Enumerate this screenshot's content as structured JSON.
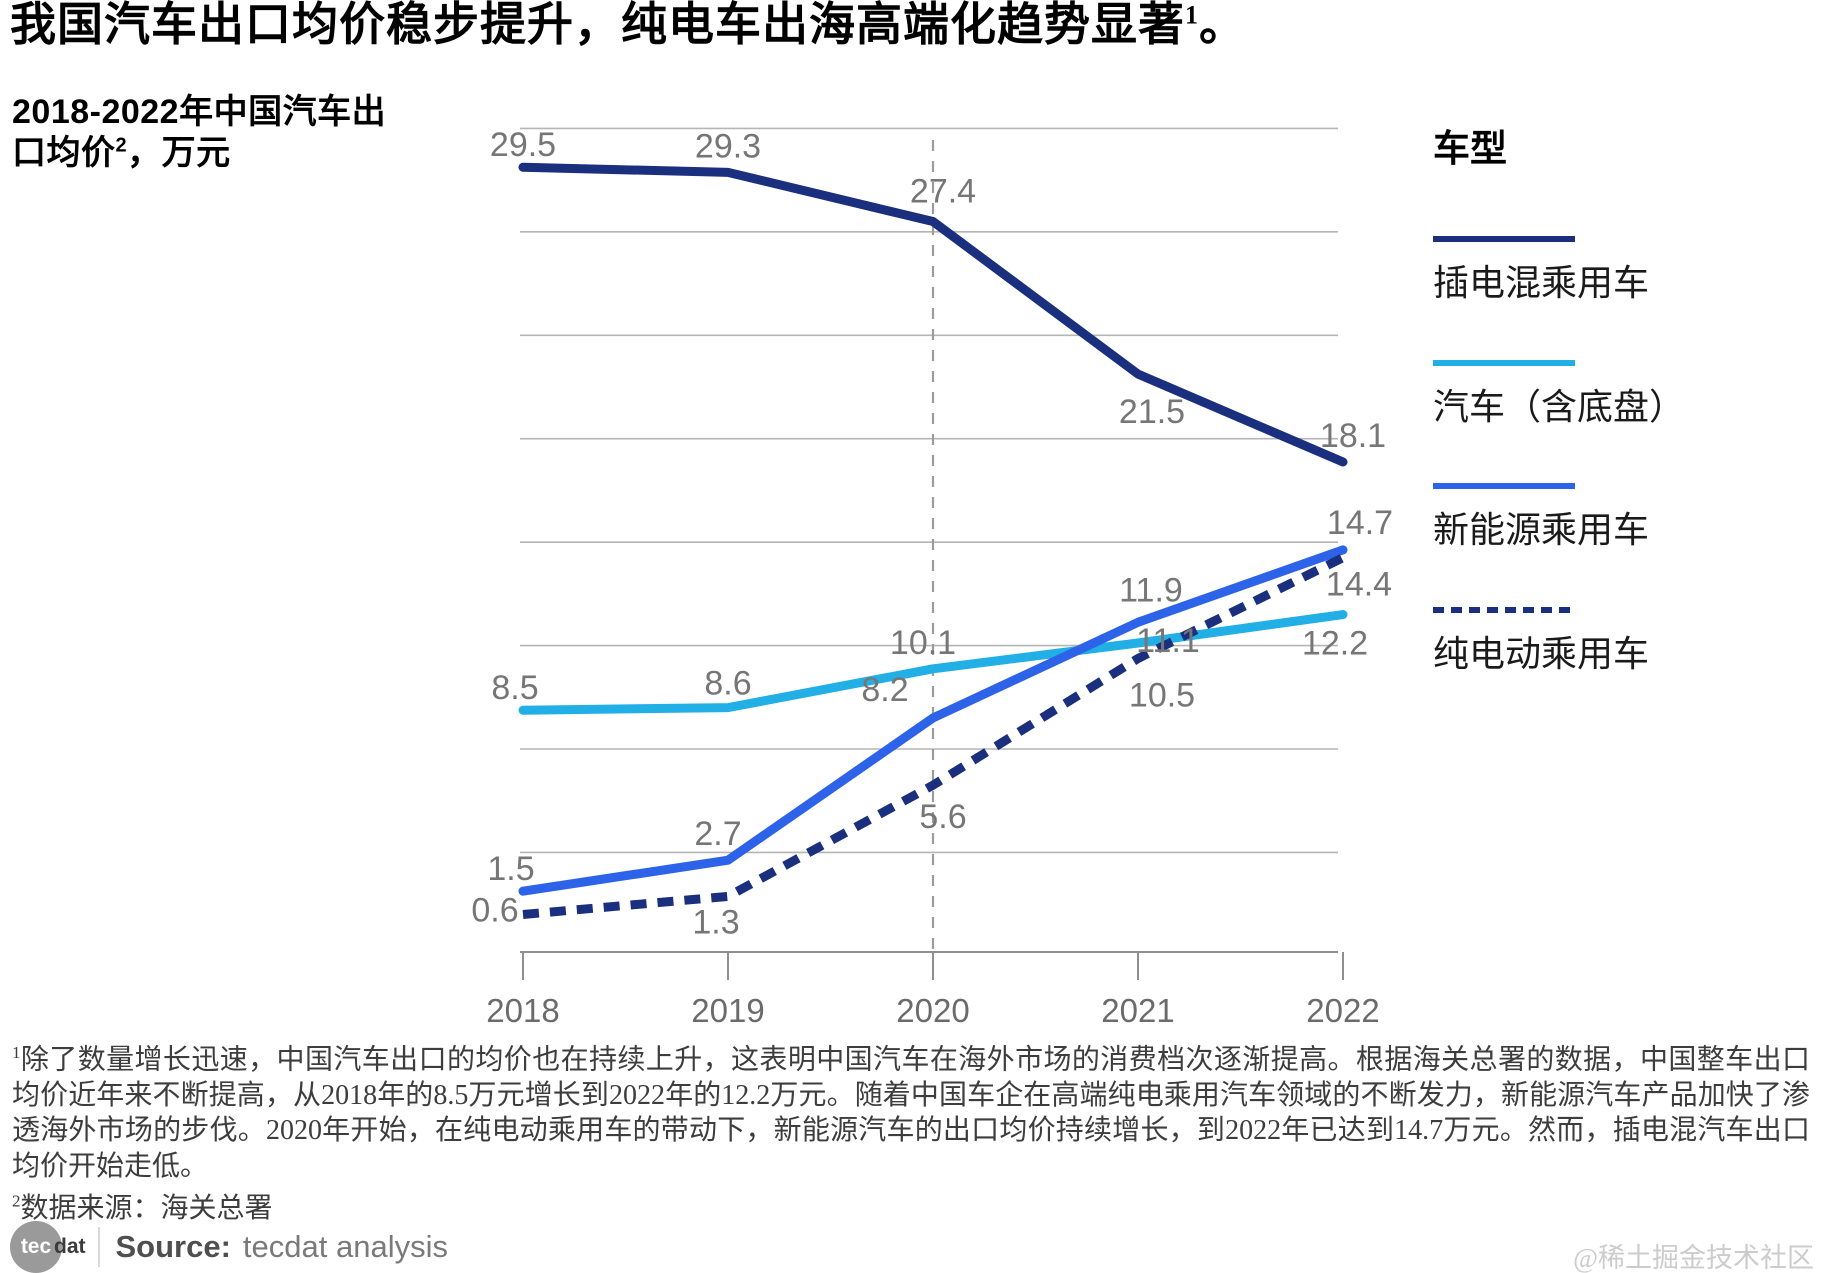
{
  "title": {
    "main": "我国汽车出口均价稳步提升，纯电车出海高端化趋势显著",
    "sup": "1",
    "tail": "。"
  },
  "subtitle": {
    "main": "2018-2022年中国汽车出口均价",
    "sup": "2",
    "tail": "，万元"
  },
  "legend": {
    "title": "车型",
    "items": [
      {
        "label": "插电混乘用车",
        "color": "#1a2f7d",
        "dashed": false
      },
      {
        "label": "汽车（含底盘）",
        "color": "#22afe6",
        "dashed": false
      },
      {
        "label": "新能源乘用车",
        "color": "#2d63e8",
        "dashed": false
      },
      {
        "label": "纯电动乘用车",
        "color": "#1a2f7d",
        "dashed": true
      }
    ]
  },
  "chart_data": {
    "type": "line",
    "title": "2018-2022年中国汽车出口均价，万元",
    "categories": [
      "2018",
      "2019",
      "2020",
      "2021",
      "2022"
    ],
    "series": [
      {
        "name": "插电混乘用车",
        "color": "#1a2f7d",
        "dashed": false,
        "values": [
          29.5,
          29.3,
          27.4,
          21.5,
          18.1
        ],
        "label_offsets": [
          [
            0,
            -22
          ],
          [
            0,
            -26
          ],
          [
            10,
            -30
          ],
          [
            14,
            38
          ],
          [
            10,
            -26
          ]
        ]
      },
      {
        "name": "汽车（含底盘）",
        "color": "#22afe6",
        "dashed": false,
        "values": [
          8.5,
          8.6,
          10.1,
          11.1,
          12.2
        ],
        "label_offsets": [
          [
            -8,
            -22
          ],
          [
            0,
            -24
          ],
          [
            -10,
            -26
          ],
          [
            30,
            -2
          ],
          [
            -8,
            29
          ]
        ]
      },
      {
        "name": "新能源乘用车",
        "color": "#2d63e8",
        "dashed": false,
        "values": [
          1.5,
          2.7,
          8.2,
          11.9,
          14.7
        ],
        "label_offsets": [
          [
            -12,
            -22
          ],
          [
            -10,
            -26
          ],
          [
            -48,
            -28
          ],
          [
            13,
            -32
          ],
          [
            17,
            -27
          ]
        ]
      },
      {
        "name": "纯电动乘用车",
        "color": "#1a2f7d",
        "dashed": true,
        "values": [
          0.6,
          1.3,
          5.6,
          10.5,
          14.4
        ],
        "label_offsets": [
          [
            -28,
            -4
          ],
          [
            -12,
            26
          ],
          [
            10,
            32
          ],
          [
            24,
            37
          ],
          [
            16,
            27
          ]
        ]
      }
    ],
    "xlabel": "",
    "ylabel": "万元",
    "ylim": [
      -0.9,
      31.2
    ],
    "gridlines": [
      3,
      7,
      11,
      15,
      19,
      23,
      27,
      31
    ],
    "grid": true,
    "legend_position": "right",
    "annotation_vline_at": "2020",
    "data_label_color": "#767676",
    "axis_label_color": "#6b6b6b",
    "grid_color": "#b5b5b5",
    "axis_color": "#8f8f8f",
    "vline_color": "#9b9b9b"
  },
  "footnotes": {
    "note1_sup": "1",
    "note1": "除了数量增长迅速，中国汽车出口的均价也在持续上升，这表明中国汽车在海外市场的消费档次逐渐提高。根据海关总署的数据，中国整车出口均价近年来不断提高，从2018年的8.5万元增长到2022年的12.2万元。随着中国车企在高端纯电乘用汽车领域的不断发力，新能源汽车产品加快了渗透海外市场的步伐。2020年开始，在纯电动乘用车的带动下，新能源汽车的出口均价持续增长，到2022年已达到14.7万元。然而，插电混汽车出口均价开始走低。",
    "note2_sup": "2",
    "note2": "数据来源：海关总署"
  },
  "source": {
    "logo_circle": "tec",
    "logo_rest": "dat",
    "label": "Source:",
    "text": "tecdat analysis"
  },
  "watermark": "@稀土掘金技术社区"
}
